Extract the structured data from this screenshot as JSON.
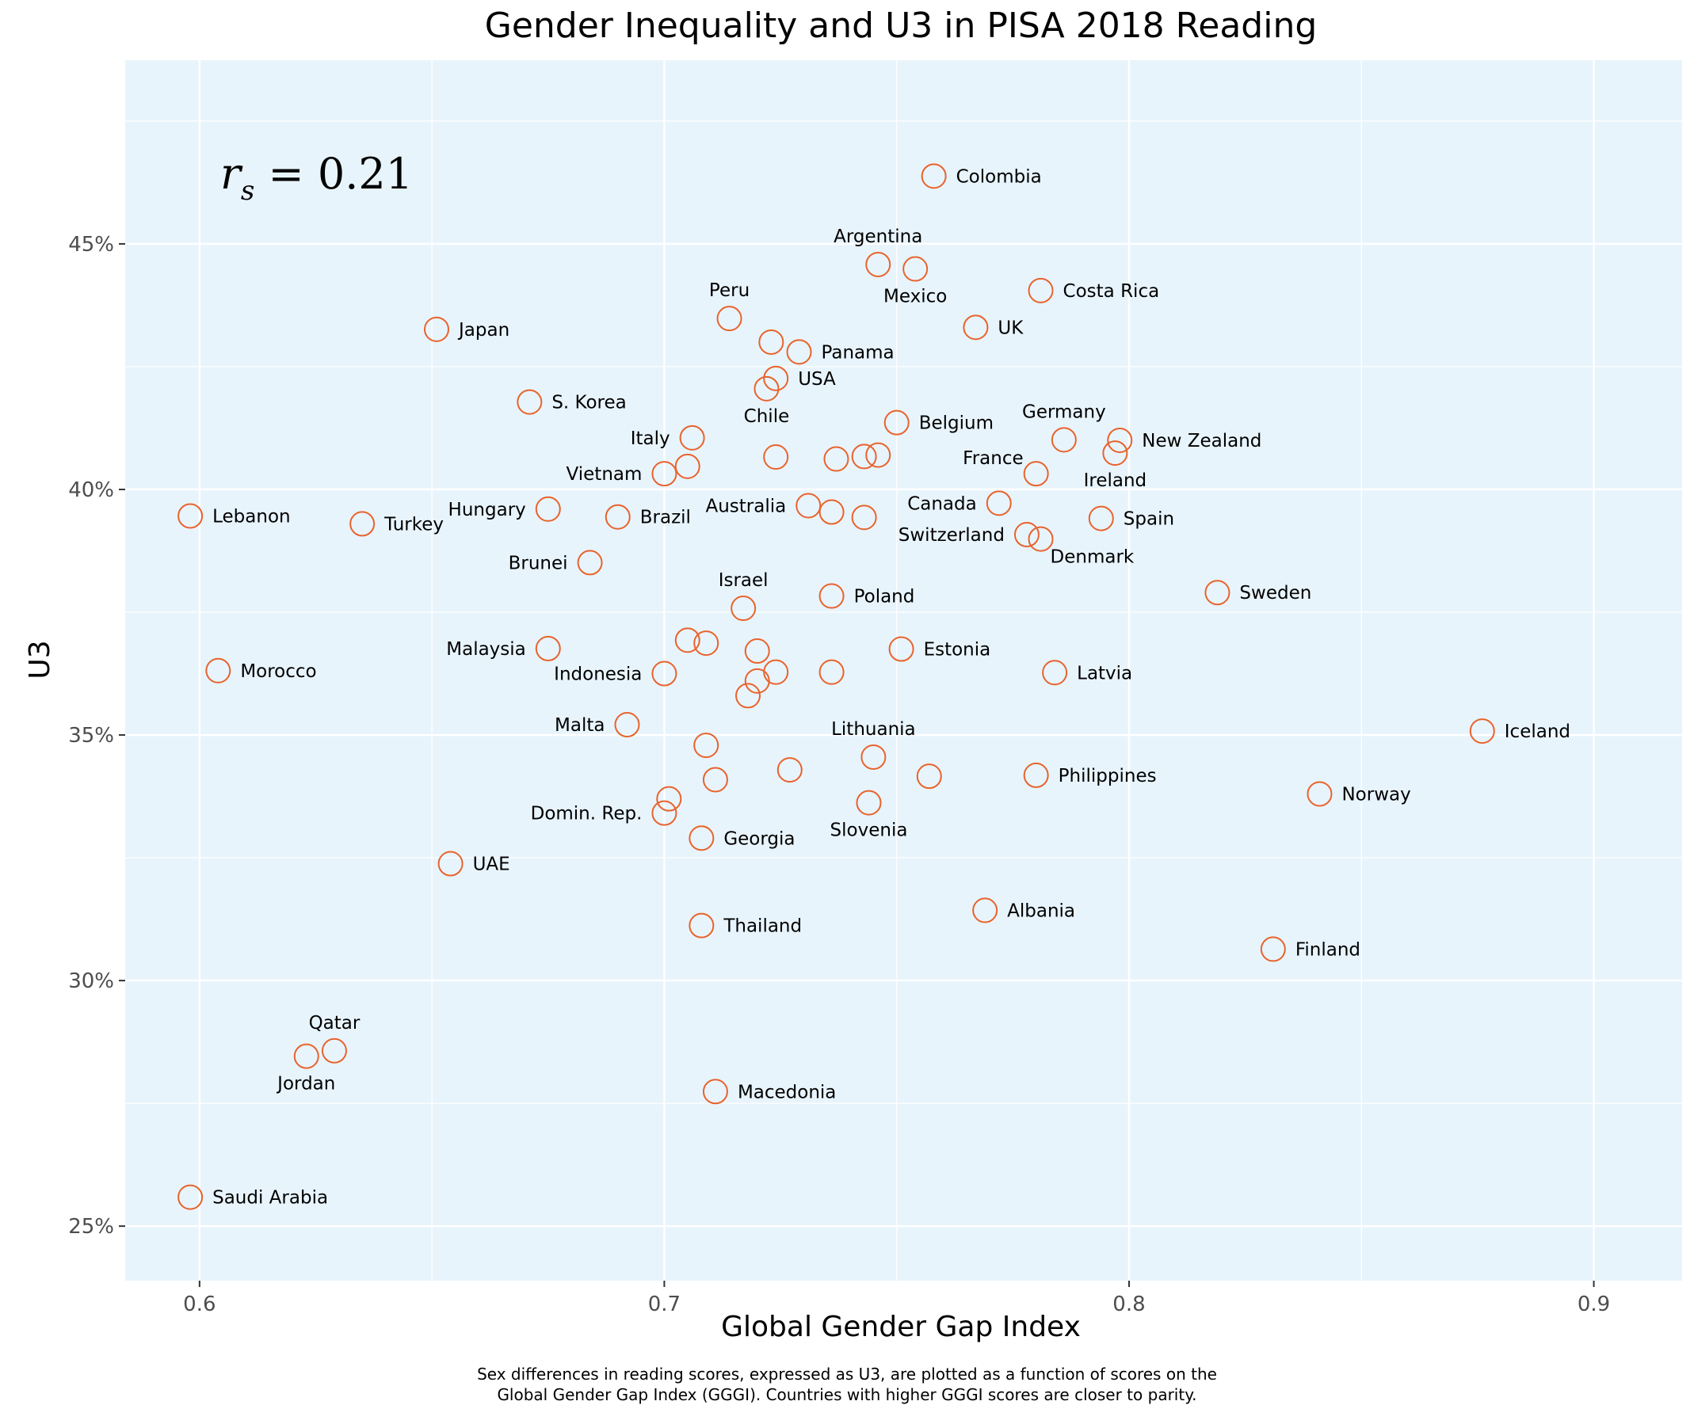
{
  "chart_data": {
    "type": "scatter",
    "title": "Gender Inequality and U3 in PISA 2018 Reading",
    "xlabel": "Global Gender Gap Index",
    "ylabel": "U3",
    "xlim": [
      0.584,
      0.919
    ],
    "ylim": [
      0.2389,
      0.4874
    ],
    "x_ticks": [
      0.6,
      0.7,
      0.8,
      0.9
    ],
    "x_tick_labels": [
      "0.6",
      "0.7",
      "0.8",
      "0.9"
    ],
    "y_ticks": [
      0.25,
      0.3,
      0.35,
      0.4,
      0.45
    ],
    "y_tick_labels": [
      "25%",
      "30%",
      "35%",
      "40%",
      "45%"
    ],
    "grid": true,
    "panel_background": "#e8f4fc",
    "marker_color": "#e8632c",
    "annotation": {
      "prefix": "r",
      "subscript": "s",
      "text": " = 0.21"
    },
    "caption": [
      "Sex differences in reading scores, expressed as U3, are plotted as a function of scores on the",
      "Global Gender Gap Index (GGGI). Countries with higher GGGI scores are closer to parity."
    ],
    "points": [
      {
        "x": 0.758,
        "y": 0.4638,
        "label": "Colombia",
        "pos": "right"
      },
      {
        "x": 0.746,
        "y": 0.4458,
        "label": "Argentina",
        "pos": "above"
      },
      {
        "x": 0.754,
        "y": 0.4449,
        "label": "Mexico",
        "pos": "below"
      },
      {
        "x": 0.781,
        "y": 0.4405,
        "label": "Costa Rica",
        "pos": "right"
      },
      {
        "x": 0.651,
        "y": 0.4326,
        "label": "Japan",
        "pos": "right"
      },
      {
        "x": 0.714,
        "y": 0.4348,
        "label": "Peru",
        "pos": "above"
      },
      {
        "x": 0.767,
        "y": 0.433,
        "label": "UK",
        "pos": "right"
      },
      {
        "x": 0.723,
        "y": 0.43,
        "label": "",
        "pos": "none"
      },
      {
        "x": 0.729,
        "y": 0.428,
        "label": "Panama",
        "pos": "right"
      },
      {
        "x": 0.724,
        "y": 0.4226,
        "label": "USA",
        "pos": "right"
      },
      {
        "x": 0.722,
        "y": 0.4205,
        "label": "Chile",
        "pos": "below"
      },
      {
        "x": 0.671,
        "y": 0.4178,
        "label": "S. Korea",
        "pos": "right"
      },
      {
        "x": 0.75,
        "y": 0.4136,
        "label": "Belgium",
        "pos": "right"
      },
      {
        "x": 0.786,
        "y": 0.4101,
        "label": "Germany",
        "pos": "above"
      },
      {
        "x": 0.798,
        "y": 0.41,
        "label": "New Zealand",
        "pos": "right"
      },
      {
        "x": 0.706,
        "y": 0.4105,
        "label": "Italy",
        "pos": "left"
      },
      {
        "x": 0.797,
        "y": 0.4074,
        "label": "Ireland",
        "pos": "below"
      },
      {
        "x": 0.724,
        "y": 0.4066,
        "label": "",
        "pos": "none"
      },
      {
        "x": 0.737,
        "y": 0.4062,
        "label": "",
        "pos": "none"
      },
      {
        "x": 0.743,
        "y": 0.4067,
        "label": "",
        "pos": "none"
      },
      {
        "x": 0.746,
        "y": 0.407,
        "label": "",
        "pos": "none"
      },
      {
        "x": 0.705,
        "y": 0.4047,
        "label": "",
        "pos": "none"
      },
      {
        "x": 0.78,
        "y": 0.4032,
        "label": "France",
        "pos": "left-above"
      },
      {
        "x": 0.7,
        "y": 0.4032,
        "label": "Vietnam",
        "pos": "left"
      },
      {
        "x": 0.772,
        "y": 0.3972,
        "label": "Canada",
        "pos": "left"
      },
      {
        "x": 0.731,
        "y": 0.3967,
        "label": "Australia",
        "pos": "left"
      },
      {
        "x": 0.736,
        "y": 0.3954,
        "label": "",
        "pos": "none"
      },
      {
        "x": 0.743,
        "y": 0.3943,
        "label": "",
        "pos": "none"
      },
      {
        "x": 0.675,
        "y": 0.396,
        "label": "Hungary",
        "pos": "left"
      },
      {
        "x": 0.69,
        "y": 0.3944,
        "label": "Brazil",
        "pos": "right"
      },
      {
        "x": 0.794,
        "y": 0.3941,
        "label": "Spain",
        "pos": "right"
      },
      {
        "x": 0.598,
        "y": 0.3946,
        "label": "Lebanon",
        "pos": "right"
      },
      {
        "x": 0.635,
        "y": 0.393,
        "label": "Turkey",
        "pos": "right"
      },
      {
        "x": 0.778,
        "y": 0.3908,
        "label": "Switzerland",
        "pos": "left"
      },
      {
        "x": 0.781,
        "y": 0.3899,
        "label": "Denmark",
        "pos": "below-right"
      },
      {
        "x": 0.684,
        "y": 0.3851,
        "label": "Brunei",
        "pos": "left"
      },
      {
        "x": 0.819,
        "y": 0.379,
        "label": "Sweden",
        "pos": "right"
      },
      {
        "x": 0.736,
        "y": 0.3783,
        "label": "Poland",
        "pos": "right"
      },
      {
        "x": 0.717,
        "y": 0.3758,
        "label": "Israel",
        "pos": "above"
      },
      {
        "x": 0.705,
        "y": 0.3693,
        "label": "",
        "pos": "none"
      },
      {
        "x": 0.709,
        "y": 0.3687,
        "label": "",
        "pos": "none"
      },
      {
        "x": 0.675,
        "y": 0.3676,
        "label": "Malaysia",
        "pos": "left"
      },
      {
        "x": 0.751,
        "y": 0.3675,
        "label": "Estonia",
        "pos": "right"
      },
      {
        "x": 0.72,
        "y": 0.3671,
        "label": "",
        "pos": "none"
      },
      {
        "x": 0.724,
        "y": 0.3628,
        "label": "",
        "pos": "none"
      },
      {
        "x": 0.736,
        "y": 0.3628,
        "label": "",
        "pos": "none"
      },
      {
        "x": 0.7,
        "y": 0.3625,
        "label": "Indonesia",
        "pos": "left"
      },
      {
        "x": 0.784,
        "y": 0.3627,
        "label": "Latvia",
        "pos": "right"
      },
      {
        "x": 0.72,
        "y": 0.361,
        "label": "",
        "pos": "none"
      },
      {
        "x": 0.718,
        "y": 0.358,
        "label": "",
        "pos": "none"
      },
      {
        "x": 0.604,
        "y": 0.3631,
        "label": "Morocco",
        "pos": "right"
      },
      {
        "x": 0.692,
        "y": 0.3521,
        "label": "Malta",
        "pos": "left"
      },
      {
        "x": 0.876,
        "y": 0.3508,
        "label": "Iceland",
        "pos": "right"
      },
      {
        "x": 0.709,
        "y": 0.3479,
        "label": "",
        "pos": "none"
      },
      {
        "x": 0.745,
        "y": 0.3455,
        "label": "Lithuania",
        "pos": "above"
      },
      {
        "x": 0.727,
        "y": 0.3429,
        "label": "",
        "pos": "none"
      },
      {
        "x": 0.757,
        "y": 0.3416,
        "label": "",
        "pos": "none"
      },
      {
        "x": 0.78,
        "y": 0.3418,
        "label": "Philippines",
        "pos": "right"
      },
      {
        "x": 0.711,
        "y": 0.3409,
        "label": "",
        "pos": "none"
      },
      {
        "x": 0.841,
        "y": 0.338,
        "label": "Norway",
        "pos": "right"
      },
      {
        "x": 0.701,
        "y": 0.337,
        "label": "",
        "pos": "none"
      },
      {
        "x": 0.744,
        "y": 0.3362,
        "label": "Slovenia",
        "pos": "below"
      },
      {
        "x": 0.7,
        "y": 0.3341,
        "label": "Domin. Rep.",
        "pos": "left"
      },
      {
        "x": 0.708,
        "y": 0.329,
        "label": "Georgia",
        "pos": "right"
      },
      {
        "x": 0.654,
        "y": 0.3238,
        "label": "UAE",
        "pos": "right"
      },
      {
        "x": 0.769,
        "y": 0.3143,
        "label": "Albania",
        "pos": "right"
      },
      {
        "x": 0.708,
        "y": 0.3112,
        "label": "Thailand",
        "pos": "right"
      },
      {
        "x": 0.831,
        "y": 0.3064,
        "label": "Finland",
        "pos": "right"
      },
      {
        "x": 0.629,
        "y": 0.2857,
        "label": "Qatar",
        "pos": "above"
      },
      {
        "x": 0.623,
        "y": 0.2846,
        "label": "Jordan",
        "pos": "below"
      },
      {
        "x": 0.711,
        "y": 0.2774,
        "label": "Macedonia",
        "pos": "right"
      },
      {
        "x": 0.598,
        "y": 0.2559,
        "label": "Saudi Arabia",
        "pos": "right"
      }
    ]
  }
}
